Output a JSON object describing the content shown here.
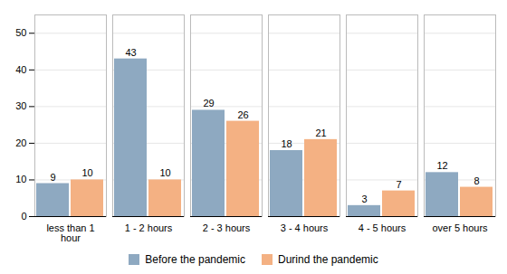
{
  "chart_data": {
    "type": "bar",
    "categories": [
      "less than 1\nhour",
      "1 - 2 hours",
      "2 - 3 hours",
      "3 - 4 hours",
      "4 - 5 hours",
      "over 5 hours"
    ],
    "series": [
      {
        "name": "Before the pandemic",
        "color": "#8EA9C1",
        "values": [
          9,
          43,
          29,
          18,
          3,
          12
        ]
      },
      {
        "name": "Durind the pandemic",
        "color": "#F4B183",
        "values": [
          10,
          10,
          26,
          21,
          7,
          8
        ]
      }
    ],
    "ylim": [
      0,
      55
    ],
    "yticks": [
      0,
      10,
      20,
      30,
      40,
      50
    ],
    "grid": true,
    "legend": "lower center",
    "data_labels": true
  }
}
